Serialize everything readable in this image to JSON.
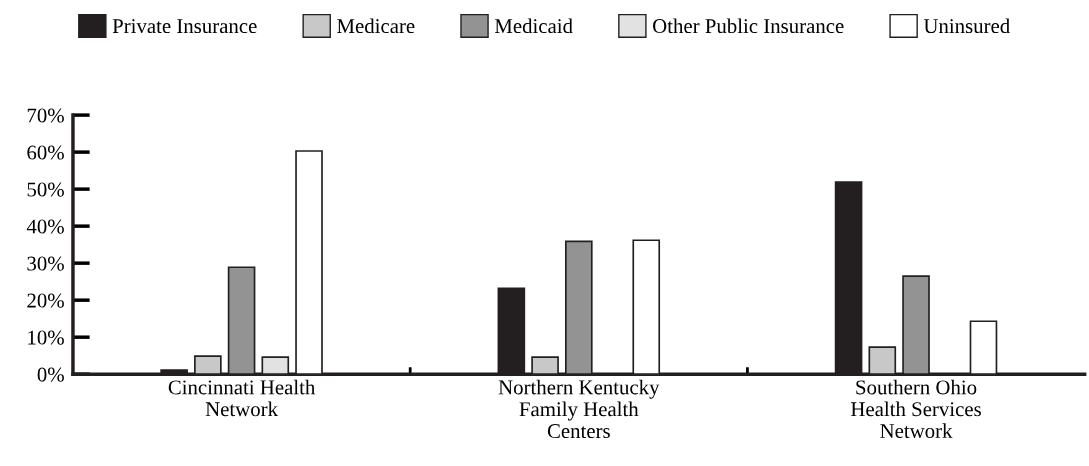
{
  "chart_data": {
    "type": "bar",
    "categories": [
      "Cincinnati Health\nNetwork",
      "Northern Kentucky\nFamily Health\nCenters",
      "Southern Ohio\nHealth Services\nNetwork"
    ],
    "series": [
      {
        "name": "Private Insurance",
        "color": "#231f20",
        "values": [
          1.1,
          23.2,
          51.9
        ]
      },
      {
        "name": "Medicare",
        "color": "#c8c8c8",
        "values": [
          4.9,
          4.6,
          7.3
        ]
      },
      {
        "name": "Medicaid",
        "color": "#939393",
        "values": [
          28.9,
          35.9,
          26.5
        ]
      },
      {
        "name": "Other Public Insurance",
        "color": "#e2e2e2",
        "values": [
          4.6,
          null,
          null
        ]
      },
      {
        "name": "Uninsured",
        "color": "#ffffff",
        "values": [
          60.3,
          36.2,
          14.3
        ]
      }
    ],
    "ylim": [
      0,
      70
    ],
    "yticks": [
      {
        "value": 0,
        "label": "0%"
      },
      {
        "value": 10,
        "label": "10%"
      },
      {
        "value": 20,
        "label": "20%"
      },
      {
        "value": 30,
        "label": "30%"
      },
      {
        "value": 40,
        "label": "40%"
      },
      {
        "value": 50,
        "label": "50%"
      },
      {
        "value": 60,
        "label": "60%"
      },
      {
        "value": 70,
        "label": "70%"
      }
    ],
    "grid": false,
    "legend": "top"
  }
}
